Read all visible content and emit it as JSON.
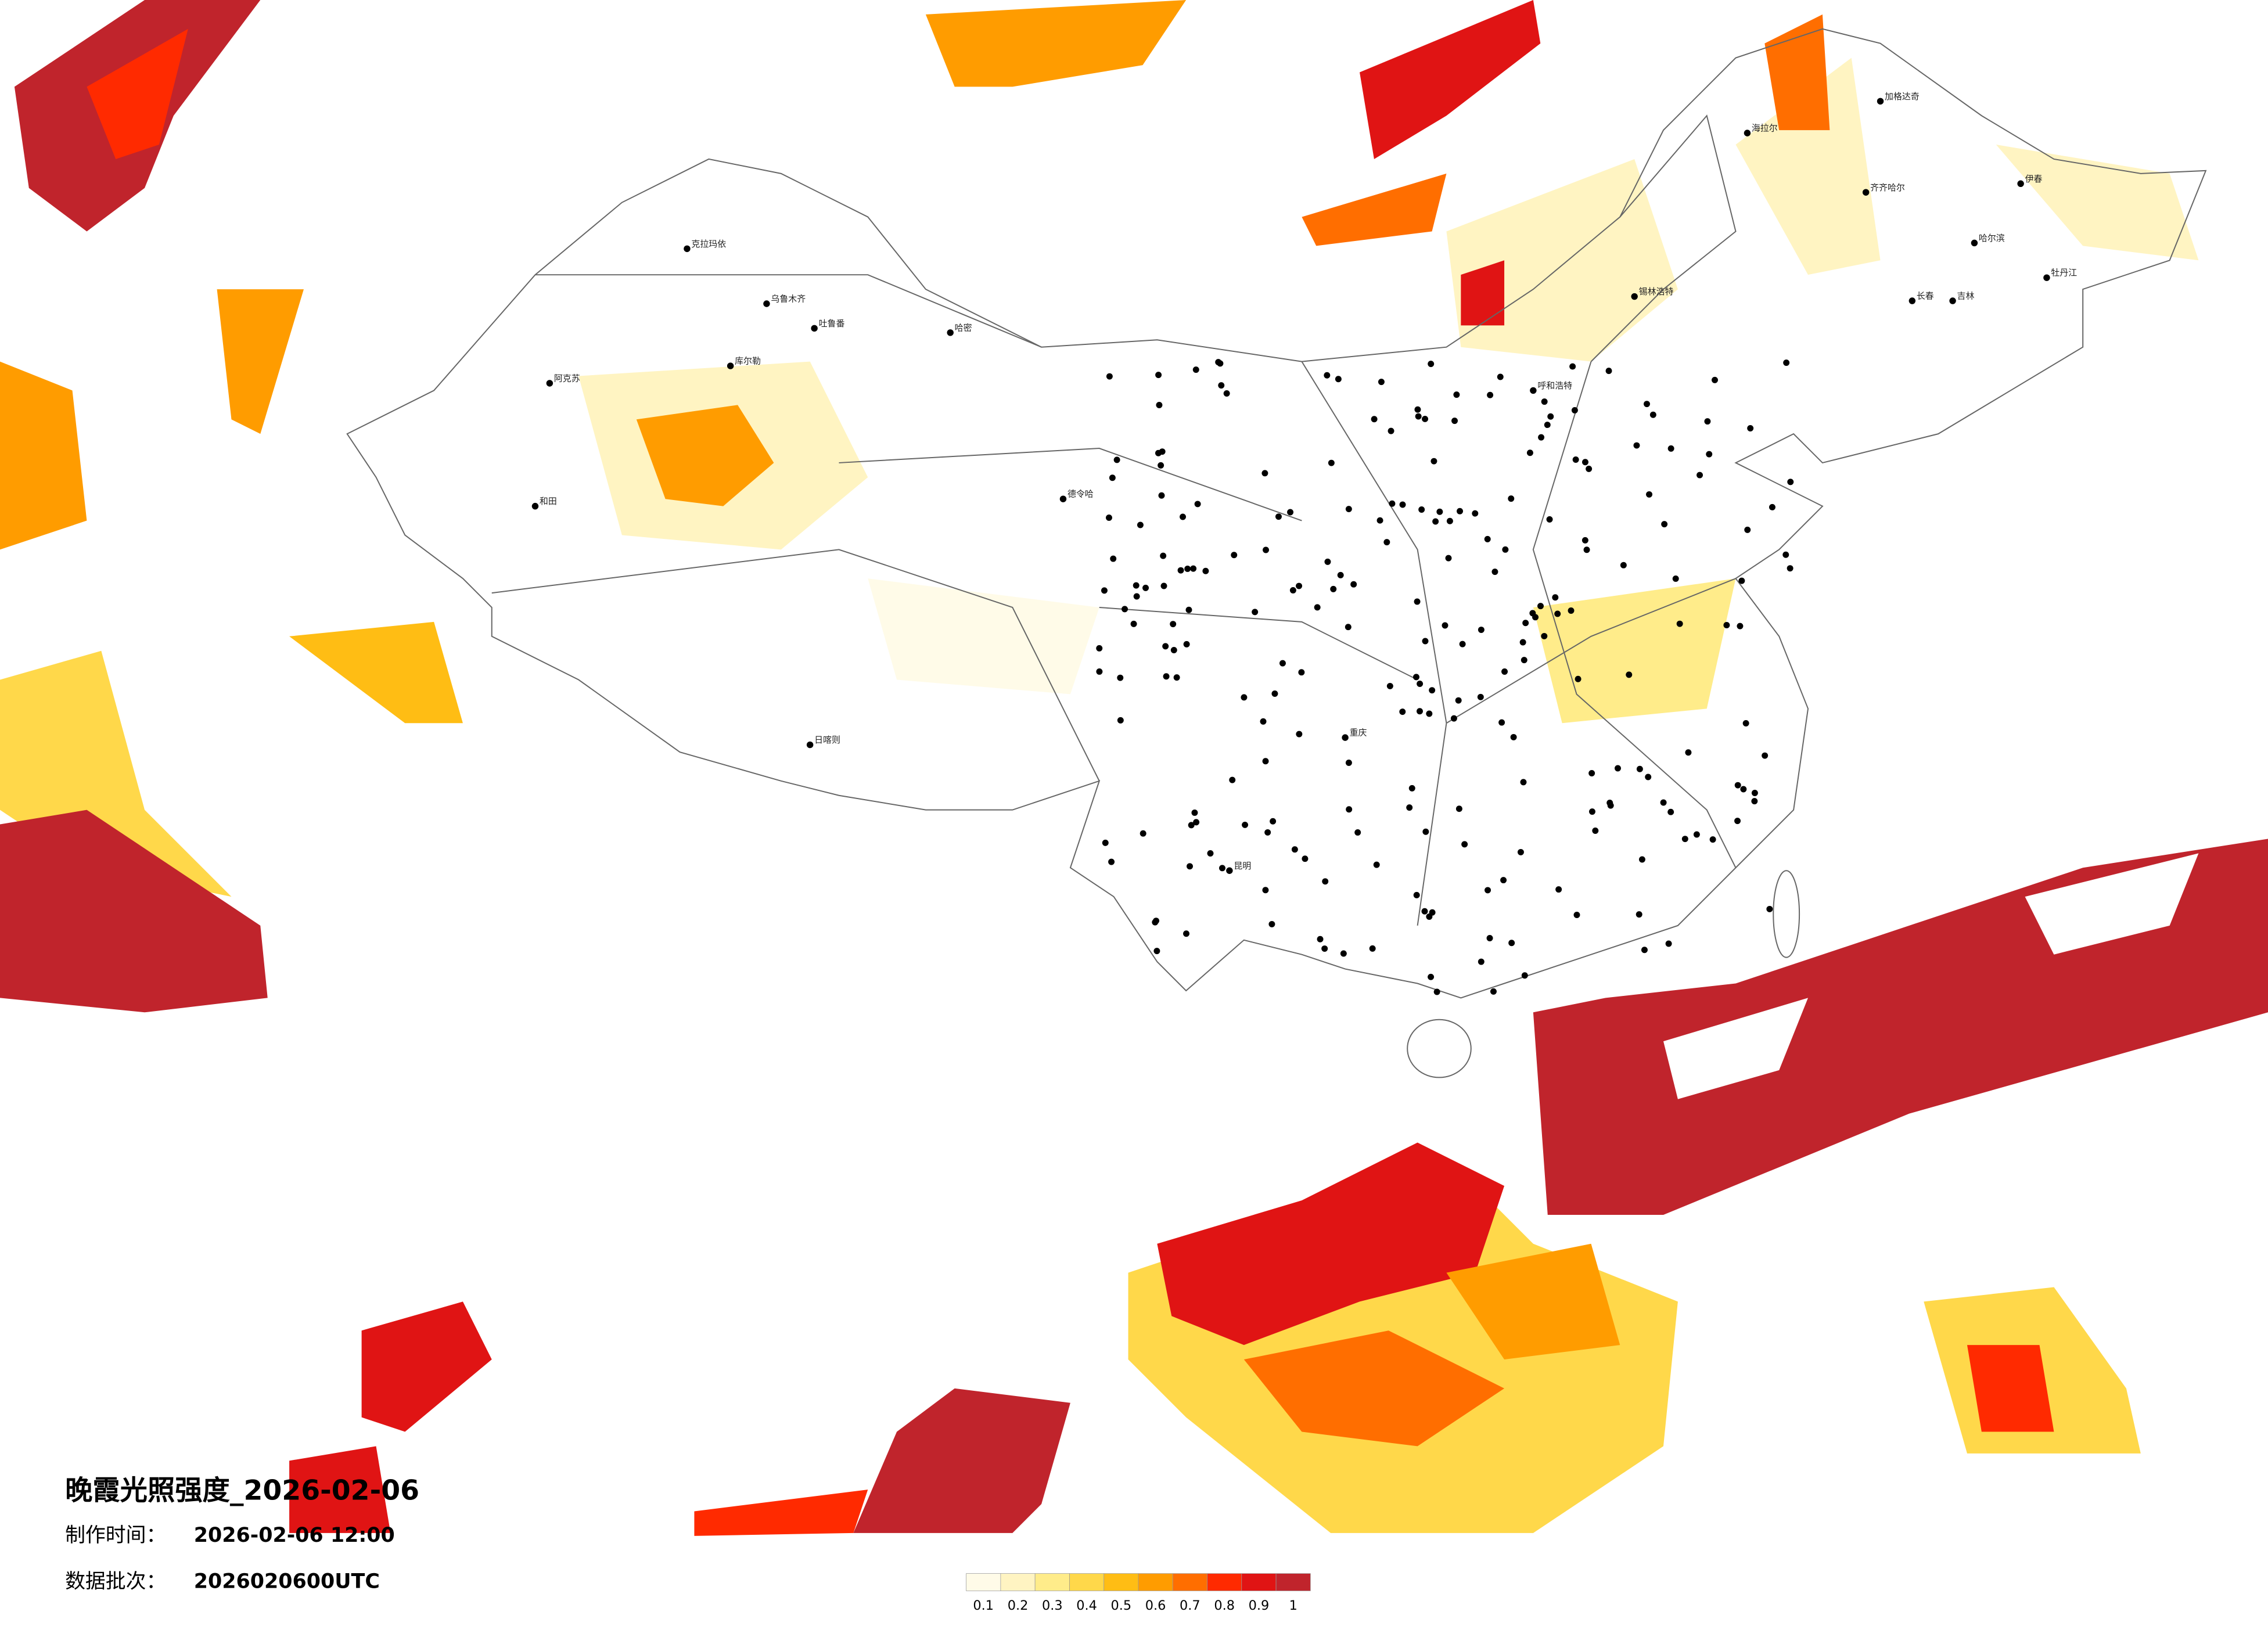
{
  "map": {
    "title": "晚霞光照强度_2026-02-06",
    "made_label": "制作时间：",
    "made_time": "2026-02-06 12:00",
    "batch_label": "数据批次：",
    "batch": "2026020600UTC",
    "legend": {
      "colors": [
        "#fffbe8",
        "#fff4c2",
        "#ffec8a",
        "#ffd84a",
        "#ffbd14",
        "#ff9c00",
        "#ff6e00",
        "#ff2a00",
        "#e01414",
        "#c0242c"
      ],
      "ticks": [
        0.1,
        0.2,
        0.3,
        0.4,
        0.5,
        0.6,
        0.7,
        0.8,
        0.9,
        1
      ]
    },
    "cities": [
      "克拉玛依",
      "乌鲁木齐",
      "吐鲁番",
      "哈密",
      "库尔勒",
      "阿克苏",
      "和田",
      "德令哈",
      "日喀则",
      "锡林浩特",
      "呼和浩特",
      "齐齐哈尔",
      "哈尔滨",
      "长春",
      "吉林",
      "牡丹江",
      "伊春",
      "海拉尔",
      "加格达奇",
      "昆明",
      "重庆"
    ]
  }
}
